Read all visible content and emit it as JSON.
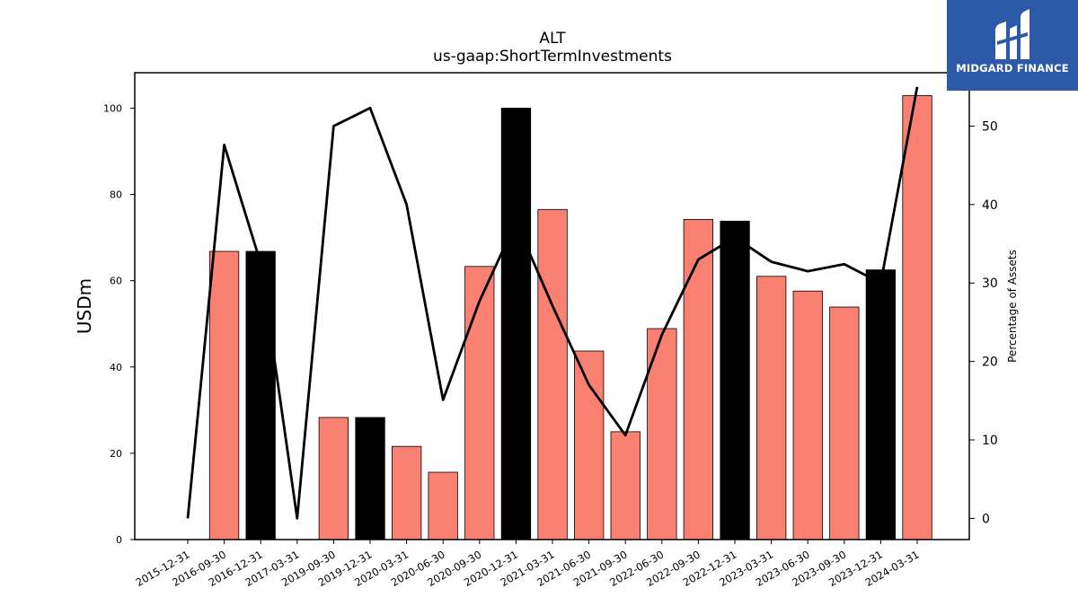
{
  "chart_data": {
    "type": "bar",
    "title": "ALT",
    "subtitle": "us-gaap:ShortTermInvestments",
    "ylabel": "USDm",
    "y2label": "Percentage of Assets",
    "categories": [
      "2015-12-31",
      "2016-09-30",
      "2016-12-31",
      "2017-03-31",
      "2019-09-30",
      "2019-12-31",
      "2020-03-31",
      "2020-06-30",
      "2020-09-30",
      "2020-12-31",
      "2021-03-31",
      "2021-06-30",
      "2021-09-30",
      "2022-06-30",
      "2022-09-30",
      "2022-12-31",
      "2023-03-31",
      "2023-06-30",
      "2023-09-30",
      "2023-12-31",
      "2024-03-31"
    ],
    "bars": {
      "values": [
        0,
        66.8,
        66.8,
        0,
        28.3,
        28.3,
        21.6,
        15.6,
        63.3,
        100.0,
        76.5,
        43.7,
        25.0,
        48.9,
        74.2,
        73.8,
        61.0,
        57.6,
        53.9,
        62.5,
        102.9
      ],
      "highlight": [
        false,
        false,
        true,
        false,
        false,
        true,
        false,
        false,
        false,
        true,
        false,
        false,
        false,
        false,
        false,
        true,
        false,
        false,
        false,
        true,
        false
      ],
      "color": "#fa8072",
      "highlight_color": "#000000"
    },
    "line": {
      "axis": "right",
      "values": [
        0,
        47.6,
        32.5,
        0,
        50.0,
        52.3,
        40.0,
        15.1,
        27.7,
        37.8,
        27.1,
        17.0,
        10.6,
        23.4,
        33.0,
        35.8,
        32.7,
        31.5,
        32.4,
        30.0,
        55.0
      ],
      "color": "#000000"
    },
    "ylim": [
      0,
      108.2
    ],
    "y2lim": [
      -2.7,
      56.8
    ],
    "yticks": [
      0,
      20,
      40,
      60,
      80,
      100
    ],
    "y2ticks": [
      0,
      10,
      20,
      30,
      40,
      50
    ],
    "grid": false
  },
  "brand": {
    "name": "MIDGARD FINANCE",
    "bg_color": "#2c5aa8"
  }
}
